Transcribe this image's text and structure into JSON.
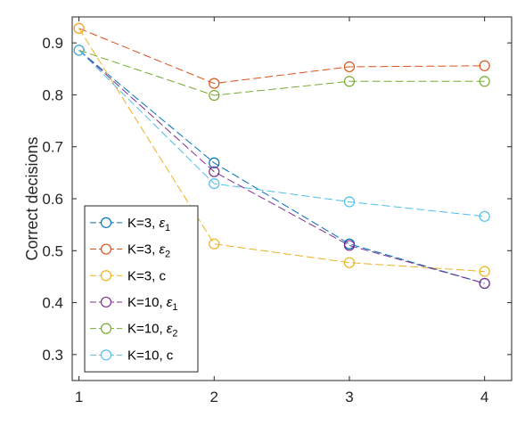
{
  "chart_data": {
    "type": "line",
    "title": "",
    "xlabel": "",
    "ylabel": "Correct decisions",
    "x": [
      1,
      2,
      3,
      4
    ],
    "xlim": [
      0.95,
      4.2
    ],
    "ylim": [
      0.25,
      0.95
    ],
    "xticks": [
      "1",
      "2",
      "3",
      "4"
    ],
    "yticks": [
      "0.3",
      "0.4",
      "0.5",
      "0.6",
      "0.7",
      "0.8",
      "0.9"
    ],
    "yticks_values": [
      0.3,
      0.4,
      0.5,
      0.6,
      0.7,
      0.8,
      0.9
    ],
    "grid": false,
    "legend_position": "lower-left",
    "series": [
      {
        "name": "K=3, ε1",
        "label_main": "K=3, ",
        "label_symbol": "ε",
        "label_sub": "1",
        "color": "#0072bd",
        "values": [
          0.886,
          0.669,
          0.513,
          0.437
        ]
      },
      {
        "name": "K=3, ε2",
        "label_main": "K=3, ",
        "label_symbol": "ε",
        "label_sub": "2",
        "color": "#d95319",
        "values": [
          0.928,
          0.822,
          0.854,
          0.856
        ]
      },
      {
        "name": "K=3, c",
        "label_main": "K=3, c",
        "label_symbol": "",
        "label_sub": "",
        "color": "#edb120",
        "values": [
          0.928,
          0.513,
          0.477,
          0.46
        ]
      },
      {
        "name": "K=10, ε1",
        "label_main": "K=10, ",
        "label_symbol": "ε",
        "label_sub": "1",
        "color": "#7e2f8e",
        "values": [
          0.886,
          0.652,
          0.51,
          0.437
        ]
      },
      {
        "name": "K=10, ε2",
        "label_main": "K=10, ",
        "label_symbol": "ε",
        "label_sub": "2",
        "color": "#77ac30",
        "values": [
          0.886,
          0.799,
          0.826,
          0.826
        ]
      },
      {
        "name": "K=10, c",
        "label_main": "K=10, c",
        "label_symbol": "",
        "label_sub": "",
        "color": "#4dbeee",
        "values": [
          0.886,
          0.629,
          0.594,
          0.566
        ]
      }
    ]
  }
}
